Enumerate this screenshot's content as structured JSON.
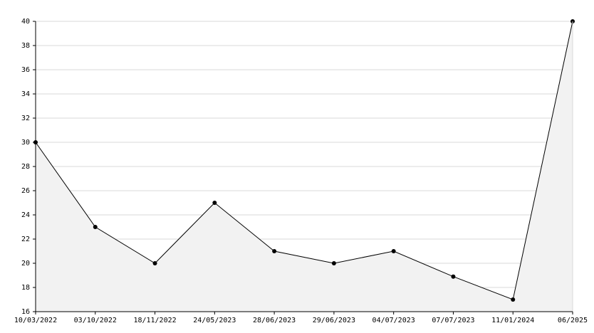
{
  "chart_data": {
    "type": "area-line",
    "categories": [
      "10/03/2022",
      "03/10/2022",
      "18/11/2022",
      "24/05/2023",
      "28/06/2023",
      "29/06/2023",
      "04/07/2023",
      "07/07/2023",
      "11/01/2024",
      "06/2025"
    ],
    "values": [
      30,
      23,
      20,
      25,
      21,
      20,
      21,
      18.9,
      17,
      40
    ],
    "color": "#000000",
    "fill": "#f2f2f2",
    "ylim": [
      16,
      40
    ],
    "yticks": [
      16,
      18,
      20,
      22,
      24,
      26,
      28,
      30,
      32,
      34,
      36,
      38,
      40
    ],
    "grid": true
  }
}
